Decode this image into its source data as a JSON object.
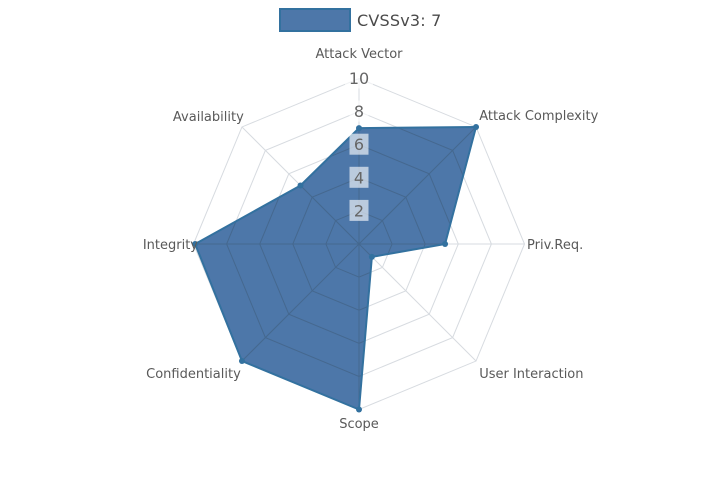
{
  "legend": {
    "label": "CVSSv3: 7",
    "swatch_fill": "#4d77a9",
    "swatch_border": "#33719f"
  },
  "chart_data": {
    "type": "radar",
    "title": "CVSSv3: 7",
    "categories": [
      "Attack Vector",
      "Attack Complexity",
      "Priv.Req.",
      "User Interaction",
      "Scope",
      "Confidentiality",
      "Integrity",
      "Availability"
    ],
    "series": [
      {
        "name": "CVSSv3: 7",
        "values": [
          7,
          10,
          5.2,
          1.1,
          10,
          10,
          9.9,
          5
        ]
      }
    ],
    "radial_ticks": [
      2,
      4,
      6,
      8,
      10
    ],
    "rlim": [
      0,
      10
    ],
    "grid": true,
    "grid_shape": "polygon",
    "legend_position": "top-center",
    "colors": {
      "fill": "#4d77a9",
      "line": "#33719f",
      "grid_inside": "#45688f",
      "grid_outside": "#d7dbe0",
      "axis_label": "#595959",
      "tick_text": "#666666",
      "tick_box": "rgba(255,255,255,0.62)"
    }
  }
}
